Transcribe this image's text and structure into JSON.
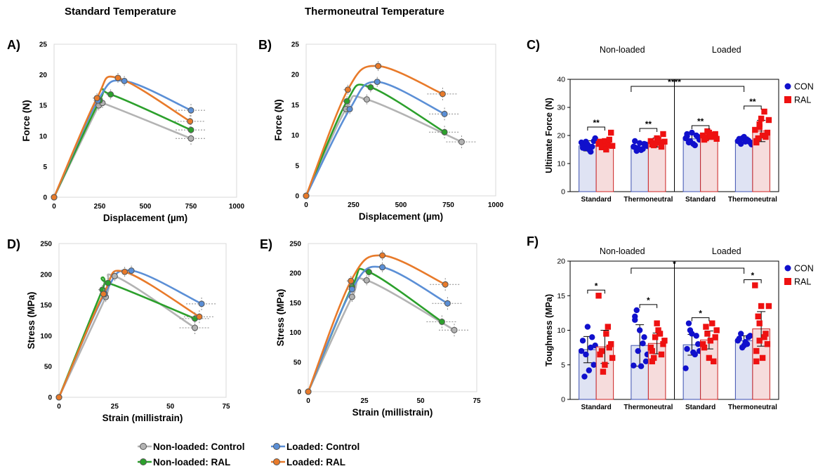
{
  "headers": {
    "standard": "Standard Temperature",
    "thermoneutral": "Thermoneutral Temperature"
  },
  "colors": {
    "nl_control": "#b3b3b3",
    "nl_ral": "#2ca02c",
    "l_control": "#5b8fd6",
    "l_ral": "#e87a2a",
    "con_dot": "#1010cc",
    "ral_dot": "#ee1111",
    "con_bar_fill": "#dfe3f3",
    "ral_bar_fill": "#f6dcdc"
  },
  "legend": {
    "nl_control": "Non-loaded: Control",
    "nl_ral": "Non-loaded: RAL",
    "l_control": "Loaded: Control",
    "l_ral": "Loaded: RAL"
  },
  "chart_data": [
    {
      "panel": "A)",
      "type": "line",
      "xlabel": "Displacement (µm)",
      "ylabel": "Force (N)",
      "xlim": [
        0,
        1000
      ],
      "ylim": [
        0,
        25
      ],
      "xticks": [
        "0",
        "250",
        "500",
        "750",
        "1000"
      ],
      "yticks": [
        "0",
        "5",
        "10",
        "15",
        "20",
        "25"
      ],
      "series": [
        {
          "name": "Non-loaded: Control",
          "points": [
            [
              0,
              0
            ],
            [
              245,
              15
            ],
            [
              265,
              15.4
            ],
            [
              750,
              9.6
            ]
          ]
        },
        {
          "name": "Non-loaded: RAL",
          "points": [
            [
              0,
              0
            ],
            [
              250,
              15.8
            ],
            [
              310,
              16.8
            ],
            [
              750,
              11
            ]
          ]
        },
        {
          "name": "Loaded: Control",
          "points": [
            [
              0,
              0
            ],
            [
              240,
              15.8
            ],
            [
              385,
              19
            ],
            [
              750,
              14.2
            ]
          ]
        },
        {
          "name": "Loaded: RAL",
          "points": [
            [
              0,
              0
            ],
            [
              235,
              16.2
            ],
            [
              350,
              19.5
            ],
            [
              745,
              12.4
            ]
          ]
        }
      ]
    },
    {
      "panel": "B)",
      "type": "line",
      "xlabel": "Displacement (µm)",
      "ylabel": "Force (N)",
      "xlim": [
        0,
        1000
      ],
      "ylim": [
        0,
        25
      ],
      "xticks": [
        "0",
        "250",
        "500",
        "750",
        "1000"
      ],
      "yticks": [
        "0",
        "5",
        "10",
        "15",
        "20",
        "25"
      ],
      "series": [
        {
          "name": "Non-loaded: Control",
          "points": [
            [
              0,
              0
            ],
            [
              210,
              14.3
            ],
            [
              320,
              15.9
            ],
            [
              820,
              8.9
            ]
          ]
        },
        {
          "name": "Non-loaded: RAL",
          "points": [
            [
              0,
              0
            ],
            [
              215,
              15.6
            ],
            [
              340,
              17.9
            ],
            [
              730,
              10.5
            ]
          ]
        },
        {
          "name": "Loaded: Control",
          "points": [
            [
              0,
              0
            ],
            [
              230,
              14.3
            ],
            [
              375,
              18.8
            ],
            [
              730,
              13.5
            ]
          ]
        },
        {
          "name": "Loaded: RAL",
          "points": [
            [
              0,
              0
            ],
            [
              220,
              17.5
            ],
            [
              380,
              21.4
            ],
            [
              720,
              16.8
            ]
          ]
        }
      ]
    },
    {
      "panel": "D)",
      "type": "line",
      "xlabel": "Strain (millistrain)",
      "ylabel": "Stress (MPa)",
      "xlim": [
        0,
        75
      ],
      "ylim": [
        0,
        250
      ],
      "xticks": [
        "0",
        "25",
        "50",
        "75"
      ],
      "yticks": [
        "0",
        "50",
        "100",
        "150",
        "200",
        "250"
      ],
      "series": [
        {
          "name": "Non-loaded: Control",
          "points": [
            [
              0,
              0
            ],
            [
              21,
              163
            ],
            [
              25,
              197
            ],
            [
              61,
              113
            ]
          ]
        },
        {
          "name": "Non-loaded: RAL",
          "points": [
            [
              0,
              0
            ],
            [
              19.5,
              175
            ],
            [
              22,
              186
            ],
            [
              61,
              128
            ]
          ]
        },
        {
          "name": "Loaded: Control",
          "points": [
            [
              0,
              0
            ],
            [
              20.5,
              168
            ],
            [
              32.5,
              206
            ],
            [
              64,
              152
            ]
          ]
        },
        {
          "name": "Loaded: RAL",
          "points": [
            [
              0,
              0
            ],
            [
              20,
              168
            ],
            [
              29.5,
              204
            ],
            [
              63,
              131
            ]
          ]
        }
      ]
    },
    {
      "panel": "E)",
      "type": "line",
      "xlabel": "Strain (millistrain)",
      "ylabel": "Stress (MPa)",
      "xlim": [
        0,
        75
      ],
      "ylim": [
        0,
        250
      ],
      "xticks": [
        "0",
        "25",
        "50",
        "75"
      ],
      "yticks": [
        "0",
        "50",
        "100",
        "150",
        "200",
        "250"
      ],
      "series": [
        {
          "name": "Non-loaded: Control",
          "points": [
            [
              0,
              0
            ],
            [
              19.5,
              160
            ],
            [
              26,
              188
            ],
            [
              65,
              104
            ]
          ]
        },
        {
          "name": "Non-loaded: RAL",
          "points": [
            [
              0,
              0
            ],
            [
              19.5,
              177
            ],
            [
              27,
              202
            ],
            [
              59.5,
              118
            ]
          ]
        },
        {
          "name": "Loaded: Control",
          "points": [
            [
              0,
              0
            ],
            [
              19.5,
              173
            ],
            [
              33,
              210
            ],
            [
              62,
              149
            ]
          ]
        },
        {
          "name": "Loaded: RAL",
          "points": [
            [
              0,
              0
            ],
            [
              19,
              187
            ],
            [
              33,
              230
            ],
            [
              61,
              181
            ]
          ]
        }
      ]
    },
    {
      "panel": "C)",
      "type": "bar",
      "ylabel": "Ultimate Force (N)",
      "ylim": [
        0,
        40
      ],
      "yticks": [
        "0",
        "10",
        "20",
        "30",
        "40"
      ],
      "section_labels": [
        "Non-loaded",
        "Loaded"
      ],
      "categories": [
        "Standard",
        "Thermoneutral",
        "Standard",
        "Thermoneutral"
      ],
      "legend": [
        "CON",
        "RAL"
      ],
      "series": [
        {
          "name": "CON",
          "values": [
            16.3,
            16.0,
            18.8,
            18.3
          ],
          "sd": [
            1.8,
            1.6,
            2.0,
            1.2
          ]
        },
        {
          "name": "RAL",
          "values": [
            16.8,
            17.5,
            19.8,
            21.6
          ],
          "sd": [
            1.7,
            1.6,
            1.2,
            3.8
          ]
        }
      ],
      "points": {
        "CON": [
          [
            17.5,
            15.5,
            16.8,
            14.2,
            18.0,
            16.5,
            17.8,
            15.0,
            16.0,
            19.0,
            15.6
          ],
          [
            16.0,
            14.5,
            17.3,
            15.2,
            16.8,
            18.0,
            15.5,
            14.8,
            17.0,
            16.2,
            15.8
          ],
          [
            19.0,
            17.5,
            21.0,
            16.5,
            19.5,
            20.5,
            18.0,
            17.0,
            20.0,
            18.5,
            19.8
          ],
          [
            18.0,
            17.0,
            19.5,
            18.5,
            17.5,
            18.8,
            19.0,
            17.8,
            18.2,
            16.8
          ]
        ],
        "RAL": [
          [
            17.0,
            15.8,
            18.0,
            16.5,
            21.0,
            17.5,
            16.0,
            15.0,
            18.5,
            16.3,
            17.8
          ],
          [
            18.0,
            16.5,
            19.0,
            17.5,
            20.5,
            16.8,
            17.2,
            18.5,
            16.0,
            17.8
          ],
          [
            20.0,
            19.0,
            21.0,
            19.5,
            20.5,
            18.5,
            21.5,
            19.8,
            20.2,
            18.8,
            19.3
          ],
          [
            22.0,
            19.0,
            26.0,
            28.5,
            21.0,
            17.5,
            24.0,
            20.0,
            19.5,
            25.5,
            18.0,
            23.0
          ]
        ]
      },
      "annotations": [
        "**",
        "**",
        "****",
        "**",
        "**"
      ]
    },
    {
      "panel": "F)",
      "type": "bar",
      "ylabel": "Toughness (MPa)",
      "ylim": [
        0,
        20
      ],
      "yticks": [
        "0",
        "5",
        "10",
        "15",
        "20"
      ],
      "section_labels": [
        "Non-loaded",
        "Loaded"
      ],
      "categories": [
        "Standard",
        "Thermoneutral",
        "Standard",
        "Thermoneutral"
      ],
      "legend": [
        "CON",
        "RAL"
      ],
      "series": [
        {
          "name": "CON",
          "values": [
            7.2,
            7.8,
            7.9,
            8.5
          ],
          "sd": [
            1.9,
            3.0,
            1.5,
            0.7
          ]
        },
        {
          "name": "RAL",
          "values": [
            7.6,
            8.1,
            8.6,
            10.2
          ],
          "sd": [
            2.4,
            1.5,
            1.3,
            2.5
          ]
        }
      ],
      "points": {
        "CON": [
          [
            7.0,
            3.3,
            10.5,
            7.5,
            5.0,
            8.5,
            6.5,
            4.2,
            9.0,
            7.8
          ],
          [
            4.9,
            12.9,
            10.0,
            8.1,
            5.5,
            11.5,
            7.0,
            4.8,
            9.0,
            6.5,
            12.0
          ],
          [
            4.5,
            11.0,
            9.5,
            6.5,
            8.0,
            7.3,
            10.0,
            6.8,
            9.2,
            7.0
          ],
          [
            8.5,
            9.5,
            7.8,
            8.0,
            9.2,
            8.8,
            7.5,
            8.3,
            9.0
          ]
        ],
        "RAL": [
          [
            15.0,
            7.0,
            5.0,
            10.5,
            8.0,
            6.5,
            4.0,
            9.5,
            7.5,
            6.0
          ],
          [
            7.5,
            6.0,
            11.0,
            9.5,
            8.0,
            7.0,
            9.0,
            10.0,
            6.5,
            8.5,
            5.5
          ],
          [
            8.0,
            10.5,
            6.0,
            11.0,
            9.0,
            7.5,
            9.5,
            8.5,
            5.5,
            10.0
          ],
          [
            16.5,
            12.0,
            13.5,
            9.0,
            8.0,
            7.0,
            11.0,
            6.0,
            9.5,
            13.5,
            5.5,
            8.5
          ]
        ]
      },
      "annotations": [
        "*",
        "*",
        "*",
        "*",
        "*"
      ]
    }
  ]
}
